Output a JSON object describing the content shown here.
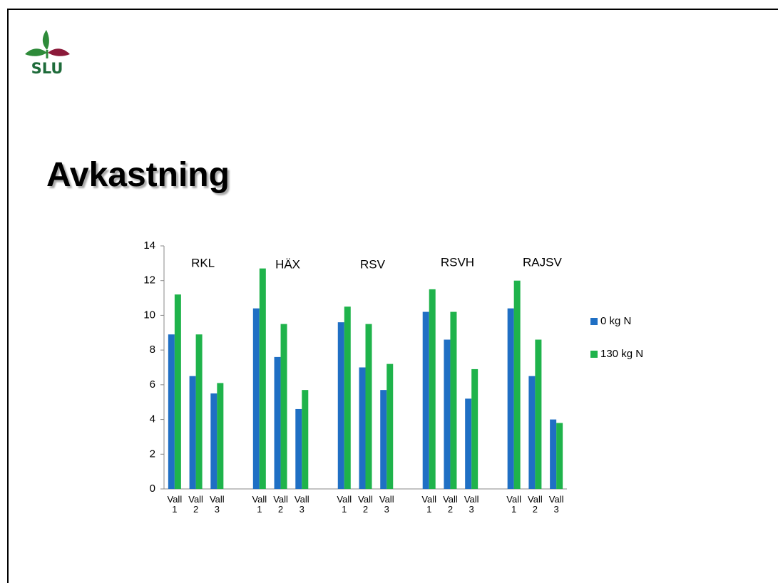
{
  "logo": {
    "text": "SLU"
  },
  "chart_data": {
    "type": "bar",
    "title": "Avkastning",
    "categories": [
      "Vall 1",
      "Vall 2",
      "Vall 3",
      null,
      "Vall 1",
      "Vall 2",
      "Vall 3",
      null,
      "Vall 1",
      "Vall 2",
      "Vall 3",
      null,
      "Vall 1",
      "Vall 2",
      "Vall 3",
      null,
      "Vall 1",
      "Vall 2",
      "Vall 3"
    ],
    "series": [
      {
        "name": "0 kg N",
        "color": "#1f6fc4",
        "values": [
          8.9,
          6.5,
          5.5,
          null,
          10.4,
          7.6,
          4.6,
          null,
          9.6,
          7.0,
          5.7,
          null,
          10.2,
          8.6,
          5.2,
          null,
          10.4,
          6.5,
          4.0
        ]
      },
      {
        "name": "130 kg N",
        "color": "#1fb34b",
        "values": [
          11.2,
          8.9,
          6.1,
          null,
          12.7,
          9.5,
          5.7,
          null,
          10.5,
          9.5,
          7.2,
          null,
          11.5,
          10.2,
          6.9,
          null,
          12.0,
          8.6,
          3.8
        ]
      }
    ],
    "annotations": [
      "RKL",
      "HÄX",
      "RSV",
      "RSVH",
      "RAJSV"
    ],
    "ylim": [
      0,
      14
    ],
    "yticks": [
      0,
      2,
      4,
      6,
      8,
      10,
      12,
      14
    ],
    "grid": false,
    "legend": "right"
  }
}
